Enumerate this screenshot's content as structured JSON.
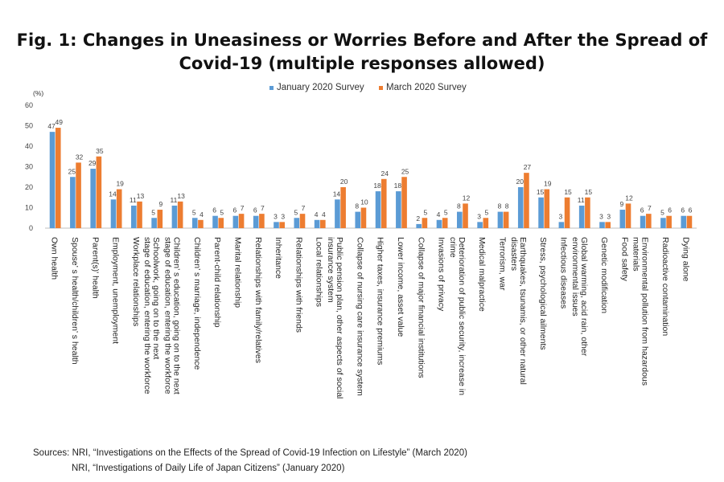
{
  "title_line1": "Fig. 1: Changes in Uneasiness or Worries Before and After the Spread of",
  "title_line2": "Covid-19 (multiple responses allowed)",
  "sources_line1": "Sources: NRI, “Investigations on the Effects of the Spread of Covid-19 Infection on Lifestyle” (March 2020)",
  "sources_line2": "NRI, “Investigations of Daily Life of Japan Citizens” (January 2020)",
  "colors": {
    "jan": "#5b9bd5",
    "mar": "#ed7d31",
    "grid": "#d9d9d9",
    "axis": "#bfbfbf"
  },
  "chart_data": {
    "type": "bar",
    "ylabel": "(%)",
    "ylim": [
      0,
      60
    ],
    "yticks": [
      0,
      10,
      20,
      30,
      40,
      50,
      60
    ],
    "grid": false,
    "legend_position": "top",
    "categories": [
      [
        "Own health"
      ],
      [
        "Spouse’ s health/children’ s health"
      ],
      [
        "Parent(s)' health"
      ],
      [
        "Employment, unemployment"
      ],
      [
        "Workplace relationships"
      ],
      [
        "Schoolwork, going on to the next",
        "stage of education, entering the workforce"
      ],
      [
        "Children’ s education, going on to the next",
        "stage of education, entering the workforce"
      ],
      [
        "Children’ s marriage, independence"
      ],
      [
        "Parent-child relationship"
      ],
      [
        "Marital relationship"
      ],
      [
        "Relationships with family/relatives"
      ],
      [
        "Inheritance"
      ],
      [
        "Relationships with friends"
      ],
      [
        "Local relationships"
      ],
      [
        "Public pension plan, other aspects of social",
        "insurance system"
      ],
      [
        "Collapse of nursing care insurance system"
      ],
      [
        "Higher taxes, insurance premiums"
      ],
      [
        "Lower income, asset value"
      ],
      [
        "Collapse of major financial institutions"
      ],
      [
        "Invasions of privacy"
      ],
      [
        "Deterioration of public security, increase in",
        "crime"
      ],
      [
        "Medical malpractice"
      ],
      [
        "Terrorism, war"
      ],
      [
        "Earthquakes, tsunamis, or other natural",
        "disasters"
      ],
      [
        "Stress, psychological ailments"
      ],
      [
        "Infectious diseases"
      ],
      [
        "Global warming, acid rain, other",
        "environmental issues"
      ],
      [
        "Genetic modification"
      ],
      [
        "Food safety"
      ],
      [
        "Environmental pollution from hazardous",
        "materials"
      ],
      [
        "Radioactive contamination"
      ],
      [
        "Dying alone"
      ]
    ],
    "series": [
      {
        "name": "January 2020 Survey",
        "values": [
          47,
          25,
          29,
          14,
          11,
          5,
          11,
          5,
          6,
          6,
          6,
          3,
          5,
          4,
          14,
          8,
          18,
          18,
          2,
          4,
          8,
          3,
          8,
          20,
          15,
          3,
          11,
          3,
          9,
          6,
          5,
          6
        ]
      },
      {
        "name": "March 2020 Survey",
        "values": [
          49,
          32,
          35,
          19,
          13,
          9,
          13,
          4,
          5,
          7,
          7,
          3,
          7,
          4,
          20,
          10,
          24,
          25,
          5,
          5,
          12,
          5,
          8,
          27,
          19,
          15,
          15,
          3,
          12,
          7,
          6,
          6
        ]
      }
    ]
  }
}
